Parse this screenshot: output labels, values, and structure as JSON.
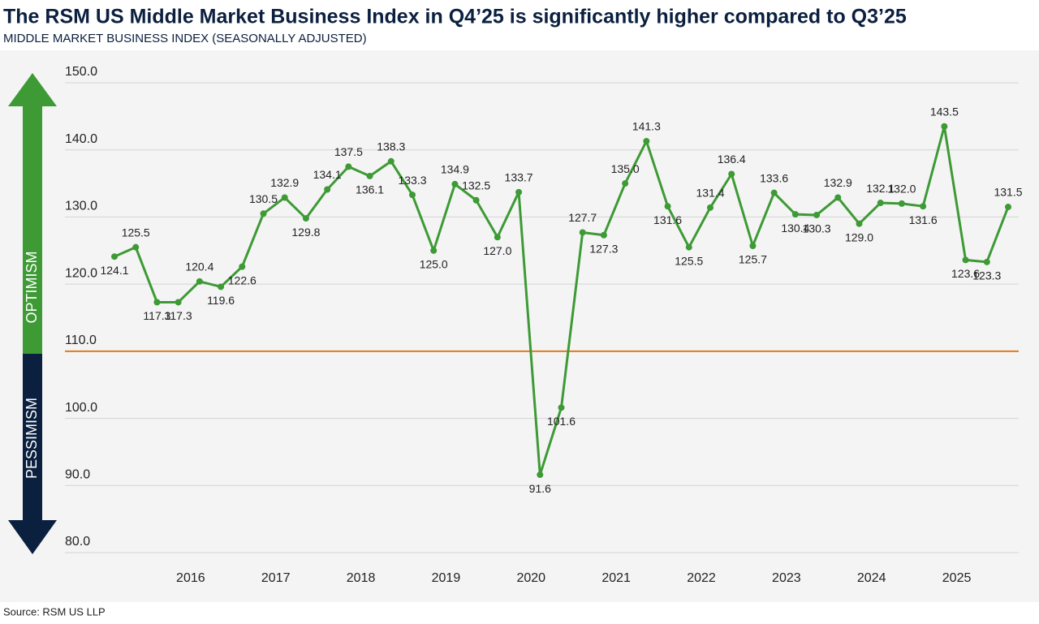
{
  "chart_data": {
    "type": "line",
    "title": "The RSM US Middle Market Business Index in Q4’25 is significantly higher compared to Q3’25",
    "subtitle": "MIDDLE MARKET BUSINESS INDEX (SEASONALLY ADJUSTED)",
    "source": "Source: RSM US LLP",
    "upper_zone_label": "OPTIMISM",
    "lower_zone_label": "PESSIMISM",
    "threshold": 110,
    "categories": [
      null,
      null,
      null,
      null,
      "2016",
      null,
      null,
      null,
      "2017",
      null,
      null,
      null,
      "2018",
      null,
      null,
      null,
      "2019",
      null,
      null,
      null,
      "2020",
      null,
      null,
      null,
      "2021",
      null,
      null,
      null,
      "2022",
      null,
      null,
      null,
      "2023",
      null,
      null,
      null,
      "2024",
      null,
      null,
      null,
      "2025",
      null,
      null
    ],
    "series": [
      {
        "name": "Middle Market Business Index",
        "color": "#3d9a35",
        "values": [
          124.1,
          125.5,
          117.3,
          117.3,
          120.4,
          119.6,
          122.6,
          130.5,
          132.9,
          129.8,
          134.1,
          137.5,
          136.1,
          138.3,
          133.3,
          125.0,
          134.9,
          132.5,
          127.0,
          133.7,
          91.6,
          101.6,
          127.7,
          127.3,
          135.0,
          141.3,
          131.6,
          125.5,
          131.4,
          136.4,
          125.7,
          133.6,
          130.4,
          130.3,
          132.9,
          129.0,
          132.1,
          132.0,
          131.6,
          143.5,
          123.6,
          123.3,
          131.5
        ],
        "value_labels": [
          "124.1",
          "125.5",
          "117.3",
          "117.3",
          "120.4",
          "119.6",
          "122.6",
          "130.5",
          "132.9",
          "129.8",
          "134.1",
          "137.5",
          "136.1",
          "138.3",
          "133.3",
          "125.0",
          "134.9",
          "132.5",
          "127.0",
          "133.7",
          "91.6",
          "101.6",
          "127.7",
          "127.3",
          "135.0",
          "141.3",
          "131.6",
          "125.5",
          "131.4",
          "136.4",
          "125.7",
          "133.6",
          "130.4",
          "130.3",
          "132.9",
          "129.0",
          "132.1",
          "132.0",
          "131.6",
          "143.5",
          "123.6",
          "123.3",
          "131.5"
        ]
      }
    ],
    "ylim": [
      80,
      150
    ],
    "yticks": [
      {
        "value": 80,
        "label": "80.0"
      },
      {
        "value": 90,
        "label": "90.0"
      },
      {
        "value": 100,
        "label": "100.0"
      },
      {
        "value": 110,
        "label": "110.0"
      },
      {
        "value": 120,
        "label": "120.0"
      },
      {
        "value": 130,
        "label": "130.0"
      },
      {
        "value": 140,
        "label": "140.0"
      },
      {
        "value": 150,
        "label": "150.0"
      }
    ],
    "grid": true
  }
}
